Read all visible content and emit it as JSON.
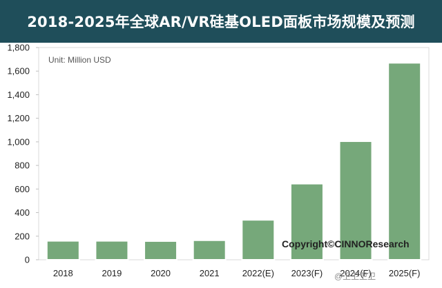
{
  "header": {
    "title": "2018-2025年全球AR/VR硅基OLED面板市场规模及预测"
  },
  "chart_data": {
    "type": "bar",
    "title": "2018-2025年全球AR/VR硅基OLED面板市场规模及预测",
    "unit_label": "Unit: Million USD",
    "categories": [
      "2018",
      "2019",
      "2020",
      "2021",
      "2022(E)",
      "2023(F)",
      "2024(F)",
      "2025(F)"
    ],
    "values": [
      160,
      160,
      158,
      165,
      338,
      645,
      1005,
      1670
    ],
    "ylim": [
      0,
      1800
    ],
    "yticks": [
      0,
      200,
      400,
      600,
      800,
      1000,
      1200,
      1400,
      1600,
      1800
    ],
    "ytick_labels": [
      "0",
      "200",
      "400",
      "600",
      "800",
      "1,000",
      "1,200",
      "1,400",
      "1,600",
      "1,800"
    ],
    "grid": false,
    "legend": "none",
    "bar_color": "#76a87a",
    "bar_edge_color": "#ffffff",
    "annotation": "Copyright©CINNOResearch"
  },
  "watermark": "@卫卫卫卫"
}
